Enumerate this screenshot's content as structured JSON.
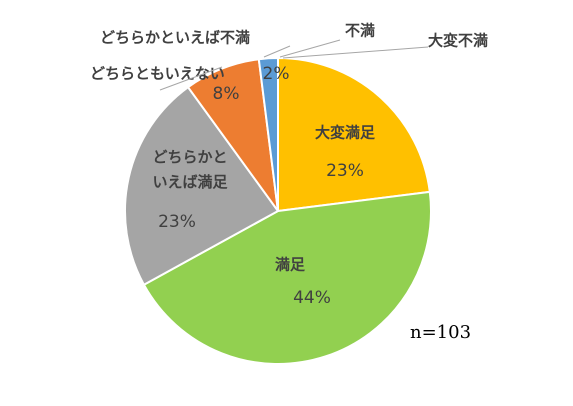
{
  "chart_data": {
    "type": "pie",
    "categories": [
      "大変満足",
      "満足",
      "どちらかといえば満足",
      "どちらともいえない",
      "どちらかといえば不満",
      "不満",
      "大変不満"
    ],
    "values": [
      23,
      44,
      23,
      8,
      2,
      0,
      0
    ],
    "value_labels": [
      "23%",
      "44%",
      "23%",
      "8%",
      "2%",
      null,
      null
    ],
    "colors": [
      "#ffc000",
      "#92d050",
      "#a5a5a5",
      "#ed7d31",
      "#5b9bd5",
      "#255e91",
      "#9e480e"
    ],
    "annotation": "n=103"
  }
}
